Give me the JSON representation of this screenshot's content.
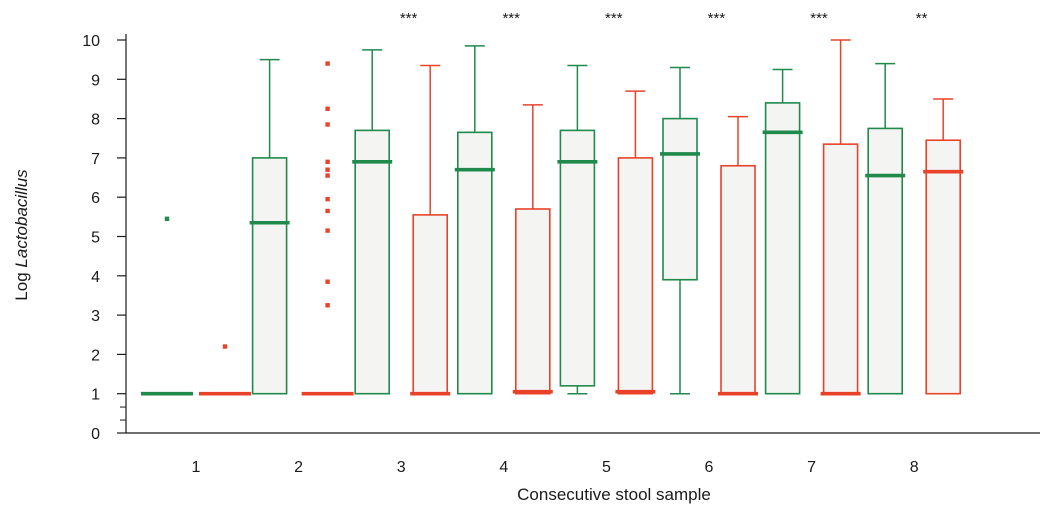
{
  "chart_data": {
    "type": "boxplot",
    "xlabel": "Consecutive stool sample",
    "ylabel_prefix": "Log ",
    "ylabel_italic": "Lactobacillus",
    "ylim": [
      0,
      10
    ],
    "yticks": [
      0,
      1,
      2,
      3,
      4,
      5,
      6,
      7,
      8,
      9,
      10
    ],
    "categories": [
      "1",
      "2",
      "3",
      "4",
      "5",
      "6",
      "7",
      "8"
    ],
    "significance": [
      "",
      "***",
      "***",
      "***",
      "***",
      "***",
      "**",
      ""
    ],
    "legend": "none",
    "grid": false,
    "series": [
      {
        "color": "#1f8a4c",
        "boxes": [
          {
            "min": 1,
            "q1": 1,
            "median": 1,
            "q3": 1,
            "max": 1,
            "outliers": [
              5.45
            ]
          },
          {
            "min": 1,
            "q1": 1,
            "median": 5.35,
            "q3": 7.0,
            "max": 9.5,
            "outliers": []
          },
          {
            "min": 1,
            "q1": 1,
            "median": 6.9,
            "q3": 7.7,
            "max": 9.75,
            "outliers": []
          },
          {
            "min": 1,
            "q1": 1,
            "median": 6.7,
            "q3": 7.65,
            "max": 9.85,
            "outliers": []
          },
          {
            "min": 1,
            "q1": 1.2,
            "median": 6.9,
            "q3": 7.7,
            "max": 9.35,
            "outliers": []
          },
          {
            "min": 1,
            "q1": 3.9,
            "median": 7.1,
            "q3": 8.0,
            "max": 9.3,
            "outliers": []
          },
          {
            "min": 1,
            "q1": 1,
            "median": 7.65,
            "q3": 8.4,
            "max": 9.25,
            "outliers": []
          },
          {
            "min": 1,
            "q1": 1,
            "median": 6.55,
            "q3": 7.75,
            "max": 9.4,
            "outliers": []
          }
        ]
      },
      {
        "color": "#e8432a",
        "boxes": [
          {
            "min": 1,
            "q1": 1,
            "median": 1,
            "q3": 1,
            "max": 1,
            "outliers": [
              2.2
            ]
          },
          {
            "min": 1,
            "q1": 1,
            "median": 1,
            "q3": 1,
            "max": 1,
            "outliers": [
              9.4,
              8.25,
              7.85,
              6.9,
              6.7,
              6.55,
              5.95,
              5.65,
              5.15,
              3.85,
              3.25
            ]
          },
          {
            "min": 1,
            "q1": 1,
            "median": 1,
            "q3": 5.55,
            "max": 9.35,
            "outliers": []
          },
          {
            "min": 1,
            "q1": 1,
            "median": 1.05,
            "q3": 5.7,
            "max": 8.35,
            "outliers": []
          },
          {
            "min": 1,
            "q1": 1,
            "median": 1.05,
            "q3": 7.0,
            "max": 8.7,
            "outliers": []
          },
          {
            "min": 1,
            "q1": 1,
            "median": 1,
            "q3": 6.8,
            "max": 8.05,
            "outliers": []
          },
          {
            "min": 1,
            "q1": 1,
            "median": 1,
            "q3": 7.35,
            "max": 10.0,
            "outliers": []
          },
          {
            "min": 1,
            "q1": 1,
            "median": 6.65,
            "q3": 7.45,
            "max": 8.5,
            "outliers": []
          }
        ]
      }
    ]
  }
}
